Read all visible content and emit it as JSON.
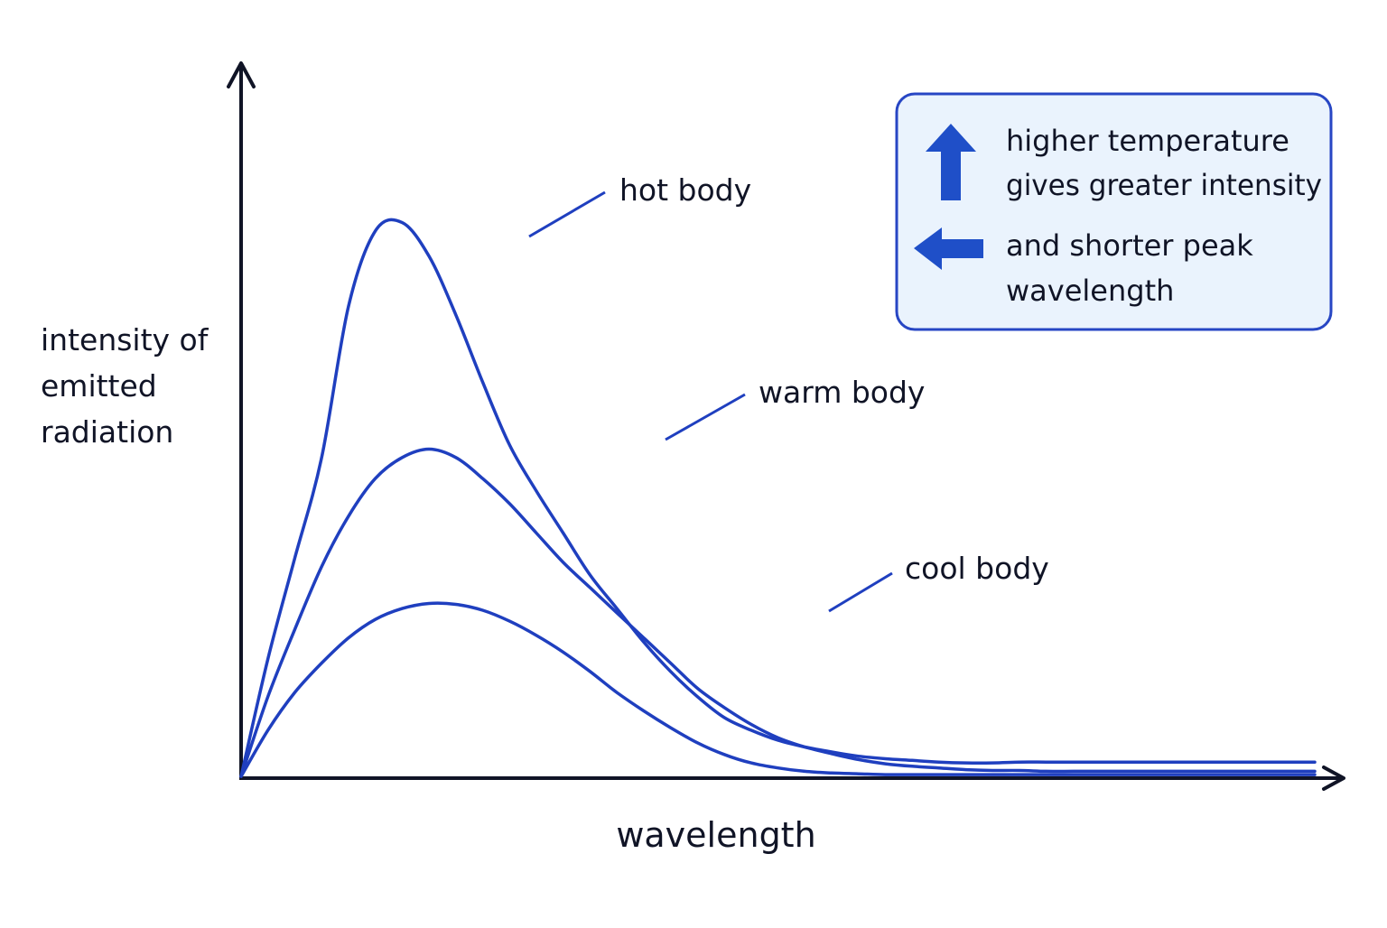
{
  "chart_data": {
    "type": "line",
    "xlabel": "wavelength",
    "ylabel_lines": [
      "intensity of",
      "emitted",
      "radiation"
    ],
    "series": [
      {
        "name": "hot body",
        "x": [
          0,
          0.5,
          1,
          1.5,
          2,
          2.5,
          3,
          3.5,
          4,
          4.5,
          5,
          5.5,
          6,
          6.5,
          7,
          7.5,
          8,
          8.5,
          9,
          9.5,
          10,
          10.5,
          11,
          11.5,
          12,
          12.5,
          13,
          13.5,
          14,
          14.5,
          15,
          15.5,
          16,
          16.5,
          17,
          17.5,
          18,
          18.5,
          19,
          19.5,
          20
        ],
        "values": [
          0,
          1.4,
          2.6,
          3.8,
          5.6,
          6.5,
          6.6,
          6.2,
          5.5,
          4.7,
          3.95,
          3.4,
          2.9,
          2.4,
          2.0,
          1.6,
          1.25,
          0.95,
          0.7,
          0.55,
          0.43,
          0.35,
          0.29,
          0.24,
          0.21,
          0.19,
          0.17,
          0.16,
          0.16,
          0.17,
          0.17,
          0.17,
          0.17,
          0.17,
          0.17,
          0.17,
          0.17,
          0.17,
          0.17,
          0.17,
          0.17
        ]
      },
      {
        "name": "warm body",
        "x": [
          0,
          0.5,
          1,
          1.5,
          2,
          2.5,
          3,
          3.5,
          4,
          4.5,
          5,
          5.5,
          6,
          6.5,
          7,
          7.5,
          8,
          8.5,
          9,
          9.5,
          10,
          10.5,
          11,
          11.5,
          12,
          12.5,
          13,
          13.5,
          14,
          14.5,
          15,
          15.5,
          16,
          16.5,
          17,
          17.5,
          18,
          18.5,
          19,
          19.5,
          20
        ],
        "values": [
          0,
          0.95,
          1.75,
          2.5,
          3.1,
          3.55,
          3.8,
          3.9,
          3.8,
          3.55,
          3.25,
          2.9,
          2.55,
          2.25,
          1.95,
          1.65,
          1.35,
          1.05,
          0.82,
          0.62,
          0.46,
          0.35,
          0.27,
          0.2,
          0.15,
          0.12,
          0.1,
          0.08,
          0.07,
          0.07,
          0.06,
          0.06,
          0.06,
          0.06,
          0.06,
          0.06,
          0.06,
          0.06,
          0.06,
          0.06,
          0.06
        ]
      },
      {
        "name": "cool body",
        "x": [
          0,
          0.5,
          1,
          1.5,
          2,
          2.5,
          3,
          3.5,
          4,
          4.5,
          5,
          5.5,
          6,
          6.5,
          7,
          7.5,
          8,
          8.5,
          9,
          9.5,
          10,
          10.5,
          11,
          11.5,
          12,
          12.5,
          13,
          13.5,
          14,
          14.5,
          15,
          15.5,
          16,
          16.5,
          17,
          17.5,
          18,
          18.5,
          19,
          19.5,
          20
        ],
        "values": [
          0,
          0.55,
          1.0,
          1.35,
          1.65,
          1.87,
          2.0,
          2.06,
          2.05,
          1.98,
          1.85,
          1.68,
          1.48,
          1.25,
          1.0,
          0.78,
          0.58,
          0.4,
          0.26,
          0.16,
          0.1,
          0.06,
          0.04,
          0.03,
          0.02,
          0.02,
          0.02,
          0.02,
          0.02,
          0.02,
          0.02,
          0.02,
          0.02,
          0.02,
          0.02,
          0.02,
          0.02,
          0.02,
          0.02,
          0.02,
          0.02
        ]
      }
    ],
    "xlim": [
      0,
      20
    ],
    "ylim": [
      0,
      8.5
    ],
    "grid": false,
    "legend": "none",
    "line_color": "#1f3fbf",
    "axis_color": "#101426",
    "annotation_box": {
      "lines_up": [
        "higher temperature",
        "gives greater intensity"
      ],
      "lines_left": [
        "and shorter peak",
        "wavelength"
      ],
      "up_arrow_icon": "up-arrow-icon",
      "left_arrow_icon": "left-arrow-icon",
      "arrow_color": "#1f4fc8",
      "background": "#eaf3fd",
      "border": "#2746c4"
    }
  }
}
